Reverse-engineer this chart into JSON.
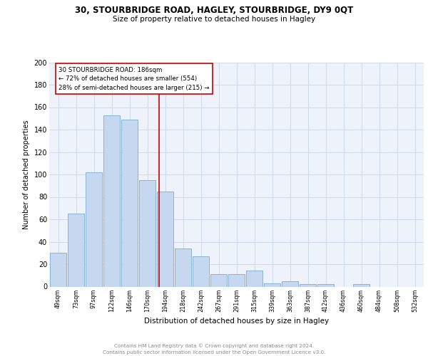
{
  "title1": "30, STOURBRIDGE ROAD, HAGLEY, STOURBRIDGE, DY9 0QT",
  "title2": "Size of property relative to detached houses in Hagley",
  "xlabel": "Distribution of detached houses by size in Hagley",
  "ylabel": "Number of detached properties",
  "categories": [
    "49sqm",
    "73sqm",
    "97sqm",
    "122sqm",
    "146sqm",
    "170sqm",
    "194sqm",
    "218sqm",
    "242sqm",
    "267sqm",
    "291sqm",
    "315sqm",
    "339sqm",
    "363sqm",
    "387sqm",
    "412sqm",
    "436sqm",
    "460sqm",
    "484sqm",
    "508sqm",
    "532sqm"
  ],
  "values": [
    30,
    65,
    102,
    153,
    149,
    95,
    85,
    34,
    27,
    11,
    11,
    14,
    3,
    5,
    2,
    2,
    0,
    2,
    0,
    0,
    0
  ],
  "bar_color": "#c5d8f0",
  "bar_edge_color": "#7aadd4",
  "vline_color": "#cc0000",
  "annotation_lines": [
    "30 STOURBRIDGE ROAD: 186sqm",
    "← 72% of detached houses are smaller (554)",
    "28% of semi-detached houses are larger (215) →"
  ],
  "annotation_box_color": "#cc0000",
  "ylim": [
    0,
    200
  ],
  "yticks": [
    0,
    20,
    40,
    60,
    80,
    100,
    120,
    140,
    160,
    180,
    200
  ],
  "grid_color": "#d0daea",
  "background_color": "#eef2fa",
  "footer_line1": "Contains HM Land Registry data © Crown copyright and database right 2024.",
  "footer_line2": "Contains public sector information licensed under the Open Government Licence v3.0."
}
